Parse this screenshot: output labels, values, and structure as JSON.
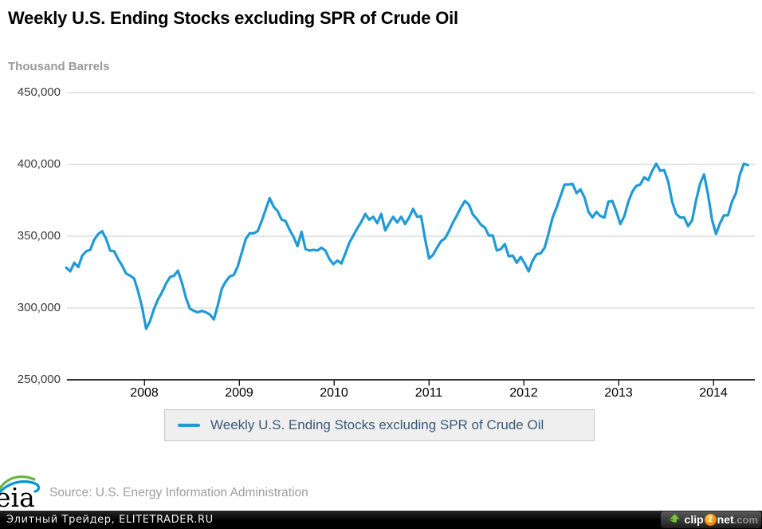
{
  "title": "Weekly U.S. Ending Stocks excluding SPR of Crude Oil",
  "units_label": "Thousand Barrels",
  "source_line": "Source: U.S. Energy Information Administration",
  "eia_logo_text": "eia",
  "legend": {
    "label": "Weekly U.S. Ending Stocks excluding SPR of Crude Oil",
    "swatch_color": "#1f9ad7"
  },
  "colors": {
    "line": "#1f9ad7",
    "grid": "#cccccc",
    "axis": "#1a1a1a",
    "title": "#000000",
    "subtitle": "#999999",
    "y_tick_text": "#3a3a3a",
    "x_tick_text": "#000000",
    "legend_bg": "#efefef",
    "legend_border": "#c3c7cb",
    "legend_text": "#3a5a78",
    "footer_bg": "#000000",
    "clip2net_orange": "#f07d00",
    "clip2net_green": "#7dc242"
  },
  "footer": {
    "left_text": "Элитный Трейдер, ELITETRADER.RU",
    "clip2net": {
      "arrow_icon": "green-up-arrow",
      "part_clip": "clip",
      "part_2": "2",
      "part_net": "net",
      "part_com": ".com"
    }
  },
  "chart_data": {
    "type": "line",
    "title": "Weekly U.S. Ending Stocks excluding SPR of Crude Oil",
    "xlabel": "",
    "ylabel": "Thousand Barrels",
    "legend_entries": [
      "Weekly U.S. Ending Stocks excluding SPR of Crude Oil"
    ],
    "grid": "horizontal",
    "x_tick_labels": [
      "2008",
      "2009",
      "2010",
      "2011",
      "2012",
      "2013",
      "2014"
    ],
    "x_tick_years": [
      2008,
      2009,
      2010,
      2011,
      2012,
      2013,
      2014
    ],
    "y_tick_labels": [
      "450,000",
      "400,000",
      "350,000",
      "300,000",
      "250,000"
    ],
    "y_tick_values": [
      450000,
      400000,
      350000,
      300000,
      250000
    ],
    "ylim": [
      250000,
      450000
    ],
    "xlim": [
      2007.18,
      2014.44
    ],
    "x_start_year": 2007.176,
    "x_step_years": 0.04202,
    "values_unit": "thousand barrels",
    "values_scale_note": "multiply each value by 1000 to get axis units (thousand barrels)",
    "values": [
      328,
      325.5,
      331.5,
      328.5,
      336.5,
      339.5,
      340.5,
      347.5,
      351.5,
      353.5,
      348,
      340,
      339.5,
      334,
      329.5,
      324,
      322.5,
      320.5,
      311.5,
      300.5,
      285.5,
      291,
      299.5,
      306,
      311,
      317,
      321.5,
      322.5,
      326,
      317.5,
      307,
      299.5,
      298,
      297,
      298,
      297,
      295.5,
      292,
      302,
      313.5,
      318.5,
      322,
      323,
      329,
      338.5,
      348,
      352,
      352,
      353.5,
      360.5,
      368.5,
      376.5,
      370.5,
      367.5,
      361.5,
      360.5,
      354.5,
      349.5,
      343,
      353,
      341,
      340,
      340.5,
      340,
      342,
      340,
      334,
      330.5,
      333,
      331,
      338,
      345.5,
      350.5,
      355.5,
      360,
      365.5,
      361.5,
      363.5,
      359,
      365.5,
      354,
      359,
      363.5,
      359.5,
      363.5,
      358.5,
      363,
      369,
      363.5,
      364,
      348,
      334.5,
      337,
      342,
      346.5,
      348.5,
      353.5,
      359.5,
      364.5,
      370,
      374.5,
      372,
      365,
      362,
      358,
      356,
      350.5,
      350.5,
      340,
      341,
      344.5,
      336,
      336.5,
      331.5,
      335.5,
      331,
      325.5,
      333,
      337.5,
      338,
      342,
      352,
      363,
      370,
      378,
      386,
      386,
      386.5,
      380,
      382.5,
      377,
      367,
      363,
      367,
      364,
      363,
      374,
      374.5,
      367,
      358.5,
      364,
      374,
      381,
      385,
      386,
      391,
      389,
      395.5,
      400.5,
      395.5,
      396,
      388,
      374,
      365.5,
      363,
      363,
      357,
      361,
      375,
      386.5,
      393,
      379,
      361.5,
      351.5,
      359,
      364.5,
      364.5,
      374,
      380,
      393,
      400.5,
      399.5
    ]
  }
}
